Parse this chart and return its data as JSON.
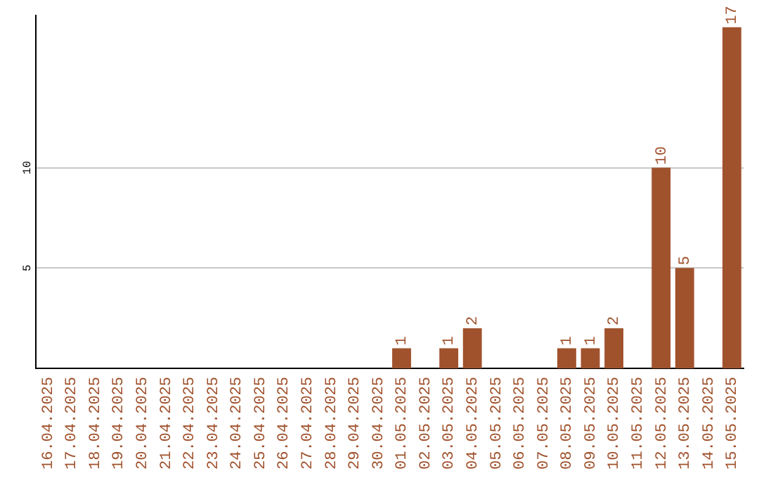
{
  "chart_data": {
    "type": "bar",
    "categories": [
      "16.04.2025",
      "17.04.2025",
      "18.04.2025",
      "19.04.2025",
      "20.04.2025",
      "21.04.2025",
      "22.04.2025",
      "23.04.2025",
      "24.04.2025",
      "25.04.2025",
      "26.04.2025",
      "27.04.2025",
      "28.04.2025",
      "29.04.2025",
      "30.04.2025",
      "01.05.2025",
      "02.05.2025",
      "03.05.2025",
      "04.05.2025",
      "05.05.2025",
      "06.05.2025",
      "07.05.2025",
      "08.05.2025",
      "09.05.2025",
      "10.05.2025",
      "11.05.2025",
      "12.05.2025",
      "13.05.2025",
      "14.05.2025",
      "15.05.2025"
    ],
    "values": [
      0,
      0,
      0,
      0,
      0,
      0,
      0,
      0,
      0,
      0,
      0,
      0,
      0,
      0,
      0,
      1,
      0,
      1,
      2,
      0,
      0,
      0,
      1,
      1,
      2,
      0,
      10,
      5,
      0,
      17
    ],
    "value_labels": [
      null,
      null,
      null,
      null,
      null,
      null,
      null,
      null,
      null,
      null,
      null,
      null,
      null,
      null,
      null,
      "1",
      null,
      "1",
      "2",
      null,
      null,
      null,
      "1",
      "1",
      "2",
      null,
      "10",
      "5",
      null,
      "17"
    ],
    "color": "#a0522d",
    "ylim": [
      0,
      17.6
    ],
    "yticks": [
      5,
      10
    ],
    "grid": "y",
    "legend": false
  }
}
